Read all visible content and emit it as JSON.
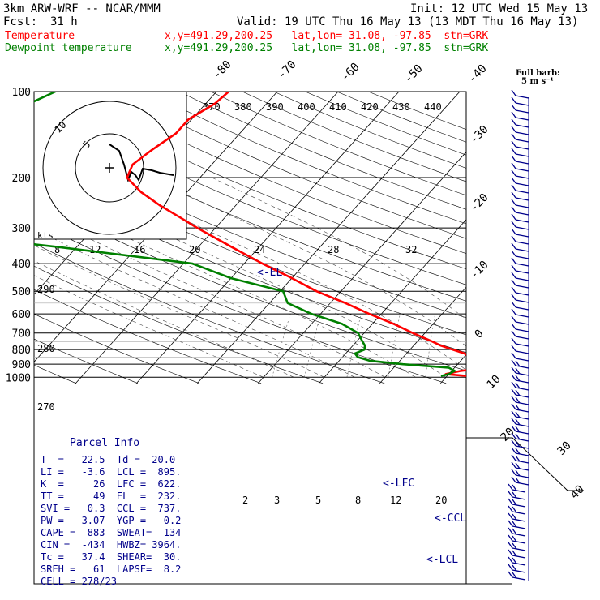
{
  "header": {
    "model": "3km ARW-WRF -- NCAR/MMM",
    "init": "Init: 12 UTC Wed 15 May 13",
    "fcst_label": "Fcst:",
    "fcst_value": "31 h",
    "valid": "Valid: 19 UTC Thu 16 May 13 (13 MDT Thu 16 May 13)",
    "temp_label": "Temperature",
    "temp_info": "x,y=491.29,200.25   lat,lon= 31.08, -97.85  stn=GRK",
    "dew_label": "Dewpoint temperature",
    "dew_info": "x,y=491.29,200.25   lat,lon= 31.08, -97.85  stn=GRK",
    "barb_key": "Full barb:",
    "barb_units": "5 m s⁻¹"
  },
  "parcel": {
    "title": "Parcel Info",
    "rows": [
      "T  =   22.5  Td =  20.0",
      "LI =   -3.6  LCL =  895.",
      "K  =     26  LFC =  622.",
      "TT =     49  EL  =  232.",
      "SVI =   0.3  CCL =  737.",
      "PW =   3.07  YGP =   0.2",
      "CAPE =  883  SWEAT=  134",
      "CIN =  -434  HWBZ= 3964.",
      "Tc =   37.4  SHEAR=  30.",
      "SREH =   61  LAPSE=  8.2",
      "CELL = 278/23"
    ]
  },
  "hodograph": {
    "ring_labels": [
      "5",
      "10"
    ],
    "units": "kts"
  },
  "chart_data": {
    "type": "line",
    "title": "",
    "xlabel": "",
    "ylabel": "",
    "pressure_ticks": [
      "100",
      "200",
      "300",
      "400",
      "500",
      "600",
      "700",
      "800",
      "900",
      "1000"
    ],
    "temperature_ticks_upper": [
      "-80",
      "-70",
      "-60",
      "-50",
      "-40"
    ],
    "temperature_ticks_right": [
      "-30",
      "-20",
      "-10",
      "0",
      "10",
      "20",
      "30",
      "40"
    ],
    "theta_labels": [
      "370",
      "380",
      "390",
      "400",
      "410",
      "420",
      "430",
      "440"
    ],
    "dry_adiabat_labels": [
      "290",
      "280",
      "270"
    ],
    "mixing_ratio_top_labels": [
      "8",
      "12",
      "16",
      "20",
      "24",
      "28",
      "32"
    ],
    "mixing_ratio_bottom_labels": [
      "2",
      "3",
      "5",
      "8",
      "12",
      "20"
    ],
    "level_markers": [
      "<-EL",
      "<-LFC",
      "<-CCL",
      "<-LCL"
    ],
    "series": [
      {
        "name": "Temperature",
        "color": "#ff0000",
        "pressure": [
          990,
          975,
          950,
          925,
          900,
          875,
          850,
          825,
          800,
          775,
          750,
          700,
          650,
          600,
          550,
          500,
          450,
          400,
          350,
          300,
          275,
          250,
          225,
          200,
          180,
          160,
          140,
          125,
          110,
          100
        ],
        "temperature": [
          23.5,
          19.5,
          21.5,
          25.0,
          27.0,
          25.5,
          21.0,
          19.5,
          17.0,
          14.5,
          12.5,
          8.0,
          3.5,
          -2.0,
          -7.5,
          -14.0,
          -20.0,
          -27.0,
          -34.5,
          -43.0,
          -47.5,
          -52.5,
          -57.5,
          -62.0,
          -63.0,
          -62.0,
          -60.5,
          -60.5,
          -58.5,
          -58.0
        ]
      },
      {
        "name": "Dewpoint temperature",
        "color": "#008000",
        "pressure": [
          990,
          975,
          950,
          925,
          900,
          875,
          850,
          825,
          800,
          775,
          750,
          700,
          650,
          600,
          550,
          500,
          450,
          400,
          350,
          325,
          300,
          275,
          250,
          225,
          200,
          175,
          150,
          125,
          110,
          100
        ],
        "temperature": [
          19.0,
          20.0,
          20.5,
          19.0,
          11.0,
          5.0,
          2.5,
          1.5,
          2.5,
          2.0,
          1.0,
          -1.0,
          -5.0,
          -11.5,
          -17.0,
          -19.5,
          -30.0,
          -38.5,
          -63.0,
          -78.0,
          -80.0,
          -84.0,
          -86.0,
          -88.0,
          -91.0,
          -94.0,
          -94.5,
          -92.0,
          -89.0,
          -86.5
        ]
      }
    ],
    "wind_barbs_present": true
  }
}
